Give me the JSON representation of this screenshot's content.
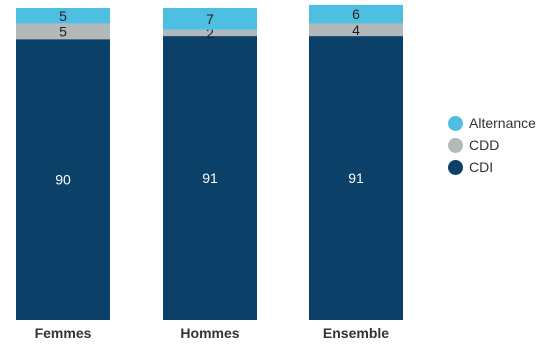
{
  "chart_data": {
    "type": "bar",
    "stacked": true,
    "normalized": true,
    "categories": [
      "Femmes",
      "Hommes",
      "Ensemble"
    ],
    "series": [
      {
        "name": "CDI",
        "values": [
          90,
          91,
          91
        ],
        "color": "#0b4068",
        "label_color": "#ffffff"
      },
      {
        "name": "CDD",
        "values": [
          5,
          2,
          4
        ],
        "color": "#b3b8bb",
        "label_color": "#222222"
      },
      {
        "name": "Alternance",
        "values": [
          5,
          7,
          6
        ],
        "color": "#4ebfe0",
        "label_color": "#222222"
      }
    ],
    "legend": {
      "position": "right",
      "order": [
        "Alternance",
        "CDD",
        "CDI"
      ]
    },
    "ylim": [
      0,
      100
    ],
    "grid": false,
    "xlabel": "",
    "ylabel": ""
  }
}
